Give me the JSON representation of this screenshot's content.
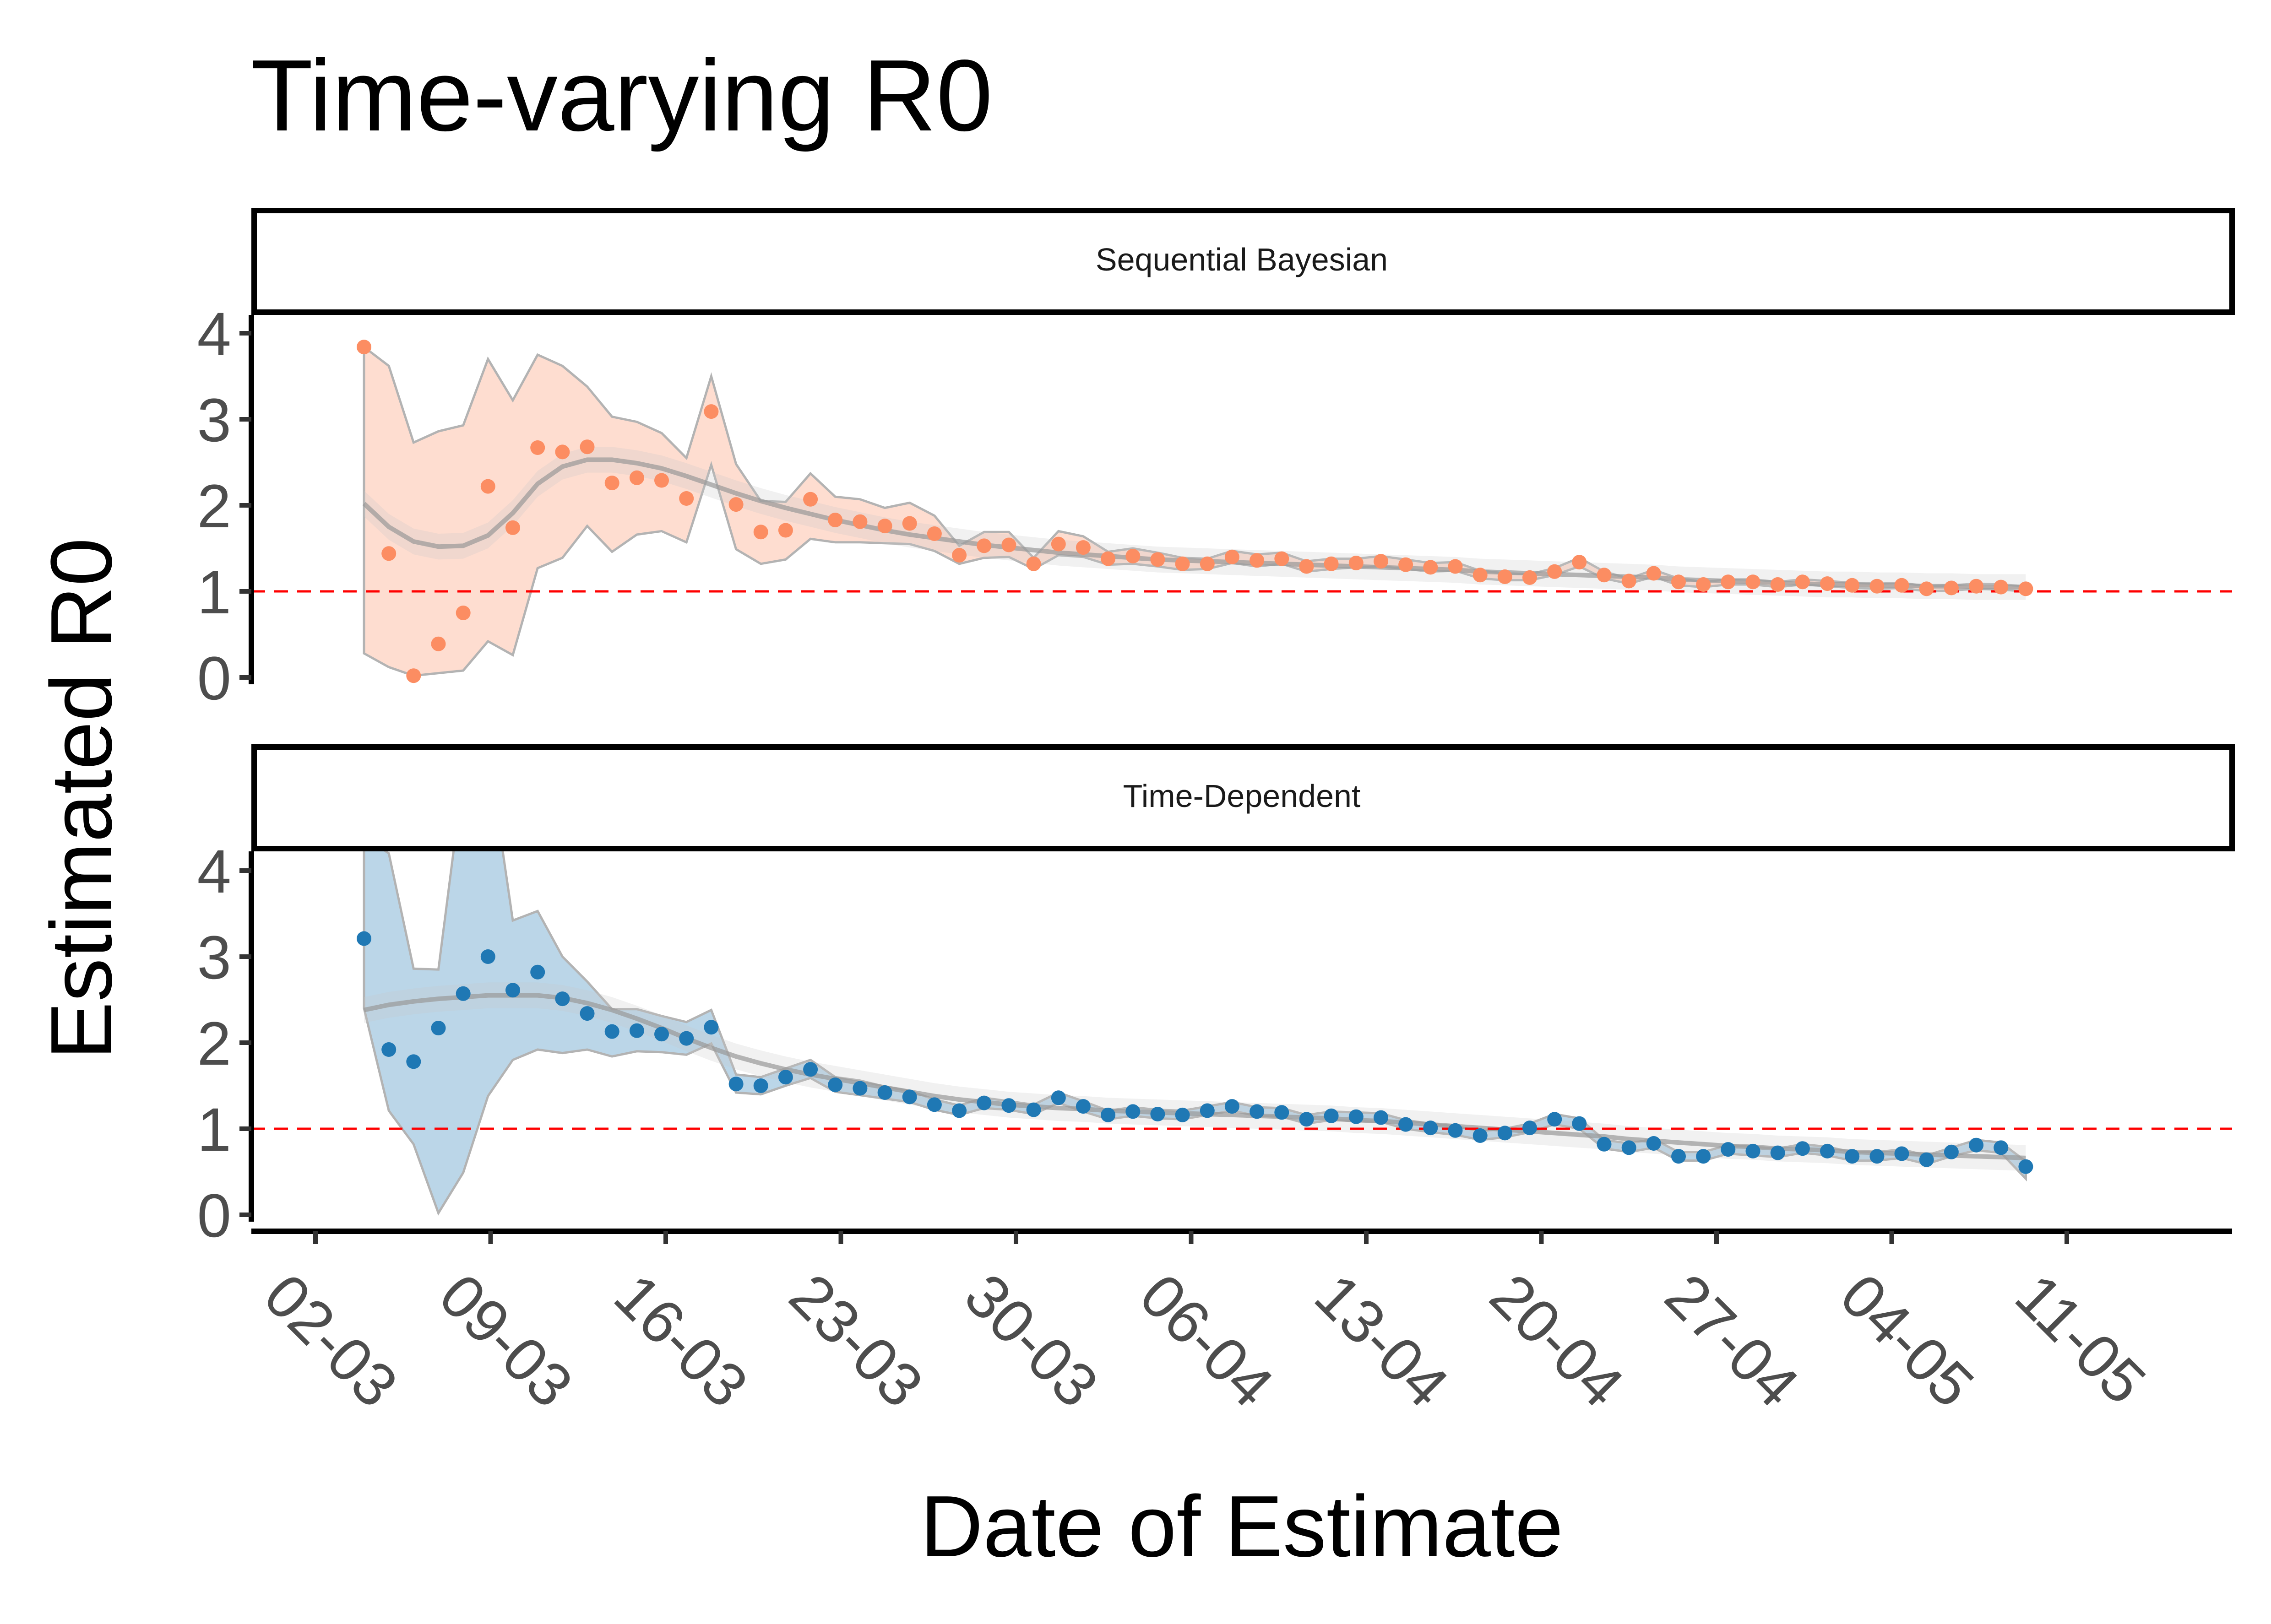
{
  "chart_data": {
    "type": "scatter",
    "title": "Time-varying R0",
    "xlabel": "Date of Estimate",
    "ylabel": "Estimated R0",
    "x_ticks": [
      "02-03",
      "09-03",
      "16-03",
      "23-03",
      "30-03",
      "06-04",
      "13-04",
      "20-04",
      "27-04",
      "04-05",
      "11-05"
    ],
    "y_ticks": [
      0,
      1,
      2,
      3,
      4
    ],
    "ylim": [
      0,
      4
    ],
    "reference_line": {
      "y": 1,
      "color": "#ff0000",
      "style": "dashed"
    },
    "grid": false,
    "legend": "none",
    "panels": [
      {
        "name": "Sequential Bayesian",
        "color": "#fc8d62",
        "values": [
          3.84,
          1.44,
          0.02,
          0.39,
          0.75,
          2.22,
          1.74,
          2.67,
          2.62,
          2.68,
          2.26,
          2.32,
          2.29,
          2.08,
          3.09,
          2.01,
          1.69,
          1.71,
          2.07,
          1.83,
          1.81,
          1.76,
          1.79,
          1.67,
          1.42,
          1.53,
          1.54,
          1.32,
          1.55,
          1.51,
          1.38,
          1.41,
          1.37,
          1.32,
          1.32,
          1.4,
          1.36,
          1.38,
          1.29,
          1.32,
          1.33,
          1.35,
          1.31,
          1.28,
          1.29,
          1.19,
          1.17,
          1.16,
          1.23,
          1.34,
          1.19,
          1.12,
          1.21,
          1.11,
          1.08,
          1.11,
          1.11,
          1.08,
          1.11,
          1.09,
          1.07,
          1.06,
          1.07,
          1.03,
          1.04,
          1.06,
          1.05,
          1.03
        ],
        "lower": [
          0.28,
          0.12,
          0.02,
          0.05,
          0.08,
          0.42,
          0.26,
          1.27,
          1.39,
          1.76,
          1.46,
          1.66,
          1.7,
          1.57,
          2.47,
          1.49,
          1.32,
          1.37,
          1.61,
          1.57,
          1.57,
          1.56,
          1.55,
          1.47,
          1.32,
          1.39,
          1.4,
          1.26,
          1.42,
          1.4,
          1.31,
          1.32,
          1.29,
          1.25,
          1.26,
          1.33,
          1.29,
          1.32,
          1.23,
          1.26,
          1.28,
          1.29,
          1.26,
          1.23,
          1.24,
          1.15,
          1.13,
          1.13,
          1.19,
          1.29,
          1.15,
          1.09,
          1.17,
          1.07,
          1.05,
          1.08,
          1.08,
          1.05,
          1.08,
          1.06,
          1.04,
          1.03,
          1.04,
          1.0,
          1.01,
          1.03,
          1.02,
          1.0
        ],
        "upper": [
          3.84,
          3.62,
          2.73,
          2.86,
          2.93,
          3.7,
          3.22,
          3.75,
          3.62,
          3.38,
          3.03,
          2.97,
          2.84,
          2.55,
          3.5,
          2.48,
          2.05,
          2.04,
          2.37,
          2.1,
          2.07,
          1.97,
          2.03,
          1.88,
          1.53,
          1.69,
          1.69,
          1.39,
          1.7,
          1.64,
          1.46,
          1.5,
          1.45,
          1.39,
          1.38,
          1.47,
          1.43,
          1.45,
          1.35,
          1.38,
          1.38,
          1.41,
          1.37,
          1.33,
          1.34,
          1.24,
          1.21,
          1.2,
          1.27,
          1.39,
          1.23,
          1.15,
          1.25,
          1.15,
          1.11,
          1.14,
          1.14,
          1.11,
          1.14,
          1.12,
          1.1,
          1.09,
          1.1,
          1.06,
          1.07,
          1.09,
          1.08,
          1.06
        ],
        "trend": [
          2.02,
          1.75,
          1.58,
          1.52,
          1.53,
          1.65,
          1.91,
          2.25,
          2.45,
          2.53,
          2.53,
          2.49,
          2.43,
          2.34,
          2.24,
          2.14,
          2.05,
          1.97,
          1.9,
          1.83,
          1.77,
          1.71,
          1.66,
          1.62,
          1.58,
          1.54,
          1.51,
          1.48,
          1.45,
          1.43,
          1.41,
          1.39,
          1.37,
          1.36,
          1.35,
          1.34,
          1.33,
          1.32,
          1.31,
          1.3,
          1.29,
          1.28,
          1.27,
          1.26,
          1.25,
          1.23,
          1.22,
          1.21,
          1.2,
          1.19,
          1.18,
          1.17,
          1.16,
          1.14,
          1.13,
          1.12,
          1.11,
          1.1,
          1.09,
          1.08,
          1.08,
          1.07,
          1.07,
          1.06,
          1.06,
          1.05,
          1.05,
          1.05
        ]
      },
      {
        "name": "Time-Dependent",
        "color": "#1f78b4",
        "values": [
          3.21,
          1.92,
          1.78,
          2.17,
          2.57,
          3.0,
          2.61,
          2.82,
          2.51,
          2.34,
          2.13,
          2.14,
          2.1,
          2.05,
          2.18,
          1.52,
          1.5,
          1.6,
          1.69,
          1.51,
          1.47,
          1.42,
          1.37,
          1.28,
          1.21,
          1.3,
          1.27,
          1.22,
          1.36,
          1.26,
          1.16,
          1.2,
          1.17,
          1.16,
          1.21,
          1.26,
          1.2,
          1.19,
          1.11,
          1.15,
          1.14,
          1.13,
          1.05,
          1.01,
          0.98,
          0.92,
          0.95,
          1.01,
          1.11,
          1.06,
          0.82,
          0.78,
          0.83,
          0.68,
          0.68,
          0.76,
          0.74,
          0.72,
          0.77,
          0.74,
          0.68,
          0.68,
          0.71,
          0.64,
          0.73,
          0.81,
          0.78,
          0.56
        ],
        "lower": [
          2.4,
          1.21,
          0.82,
          0.02,
          0.49,
          1.38,
          1.8,
          1.92,
          1.88,
          1.92,
          1.84,
          1.9,
          1.89,
          1.86,
          1.99,
          1.42,
          1.4,
          1.5,
          1.59,
          1.43,
          1.39,
          1.35,
          1.31,
          1.22,
          1.16,
          1.24,
          1.22,
          1.17,
          1.3,
          1.2,
          1.11,
          1.15,
          1.12,
          1.11,
          1.16,
          1.21,
          1.15,
          1.14,
          1.06,
          1.1,
          1.09,
          1.08,
          1.0,
          0.96,
          0.93,
          0.87,
          0.9,
          0.96,
          1.05,
          1.0,
          0.77,
          0.73,
          0.78,
          0.63,
          0.63,
          0.71,
          0.69,
          0.67,
          0.72,
          0.69,
          0.63,
          0.63,
          0.66,
          0.59,
          0.68,
          0.75,
          0.72,
          0.42
        ],
        "upper": [
          4.4,
          4.2,
          2.86,
          2.85,
          5.1,
          5.4,
          3.42,
          3.53,
          3.0,
          2.71,
          2.39,
          2.39,
          2.31,
          2.24,
          2.38,
          1.63,
          1.6,
          1.7,
          1.8,
          1.6,
          1.56,
          1.49,
          1.44,
          1.34,
          1.27,
          1.36,
          1.32,
          1.28,
          1.42,
          1.32,
          1.21,
          1.25,
          1.22,
          1.21,
          1.26,
          1.31,
          1.25,
          1.24,
          1.16,
          1.2,
          1.19,
          1.18,
          1.1,
          1.06,
          1.03,
          0.97,
          1.0,
          1.06,
          1.17,
          1.12,
          0.87,
          0.83,
          0.88,
          0.73,
          0.73,
          0.81,
          0.79,
          0.77,
          0.82,
          0.79,
          0.73,
          0.73,
          0.76,
          0.69,
          0.78,
          0.87,
          0.84,
          0.62
        ],
        "trend": [
          2.38,
          2.44,
          2.48,
          2.51,
          2.53,
          2.55,
          2.55,
          2.55,
          2.52,
          2.46,
          2.38,
          2.28,
          2.17,
          2.05,
          1.94,
          1.84,
          1.76,
          1.69,
          1.63,
          1.58,
          1.53,
          1.48,
          1.43,
          1.38,
          1.34,
          1.31,
          1.28,
          1.26,
          1.24,
          1.23,
          1.21,
          1.2,
          1.19,
          1.18,
          1.17,
          1.16,
          1.15,
          1.14,
          1.13,
          1.12,
          1.1,
          1.09,
          1.07,
          1.05,
          1.03,
          1.01,
          0.99,
          0.97,
          0.95,
          0.93,
          0.91,
          0.88,
          0.86,
          0.84,
          0.82,
          0.8,
          0.79,
          0.77,
          0.76,
          0.75,
          0.73,
          0.72,
          0.71,
          0.7,
          0.69,
          0.68,
          0.67,
          0.66
        ]
      }
    ]
  }
}
